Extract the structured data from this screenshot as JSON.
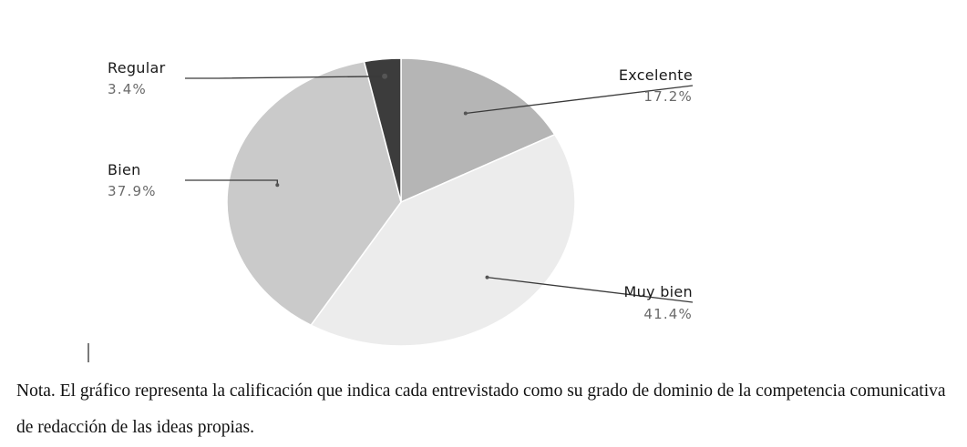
{
  "chart_data": {
    "type": "pie",
    "title": "",
    "slices": [
      {
        "label": "Excelente",
        "value": 17.2,
        "value_label": "17.2%",
        "color": "#b5b5b5"
      },
      {
        "label": "Muy bien",
        "value": 41.4,
        "value_label": "41.4%",
        "color": "#ececec"
      },
      {
        "label": "Bien",
        "value": 37.9,
        "value_label": "37.9%",
        "color": "#cacaca"
      },
      {
        "label": "Regular",
        "value": 3.4,
        "value_label": "3.4%",
        "color": "#3c3c3c"
      }
    ],
    "start_angle_degrees": 0,
    "direction": "clockwise",
    "legend": "none",
    "labels": "outside with leader lines"
  },
  "note": "Nota. El gráfico representa la calificación que indica cada entrevistado como su grado de dominio de la competencia comunicativa de redacción de las ideas propias."
}
